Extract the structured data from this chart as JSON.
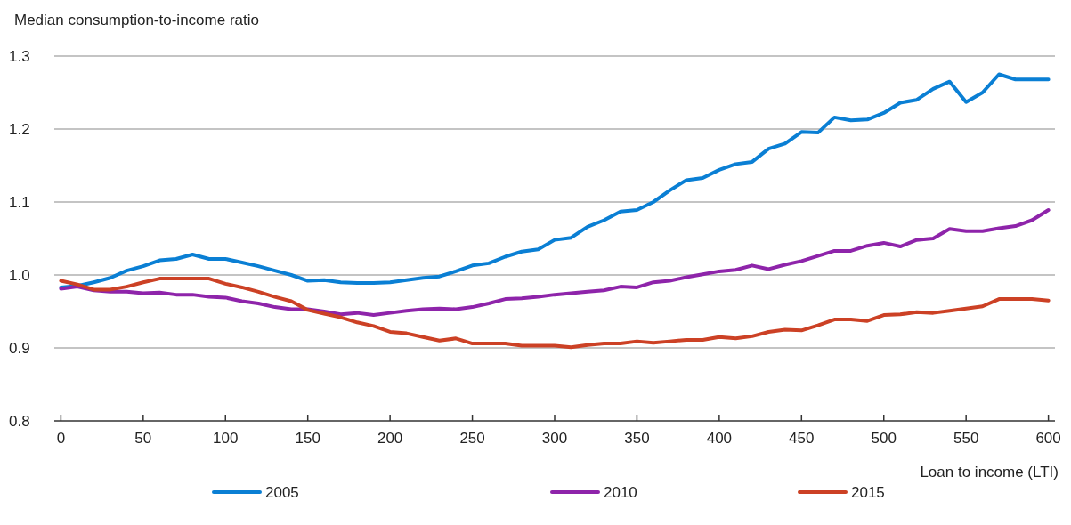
{
  "chart_data": {
    "type": "line",
    "ylabel": "Median consumption-to-income ratio",
    "xlabel": "Loan to income (LTI)",
    "x": [
      0,
      10,
      20,
      30,
      40,
      50,
      60,
      70,
      80,
      90,
      100,
      110,
      120,
      130,
      140,
      150,
      160,
      170,
      180,
      190,
      200,
      210,
      220,
      230,
      240,
      250,
      260,
      270,
      280,
      290,
      300,
      310,
      320,
      330,
      340,
      350,
      360,
      370,
      380,
      390,
      400,
      410,
      420,
      430,
      440,
      450,
      460,
      470,
      480,
      490,
      500,
      510,
      520,
      530,
      540,
      550,
      560,
      570,
      580,
      590,
      600
    ],
    "series": [
      {
        "name": "2005",
        "color": "#0a7fd4",
        "values": [
          0.983,
          0.985,
          0.99,
          0.996,
          1.006,
          1.012,
          1.02,
          1.022,
          1.028,
          1.022,
          1.022,
          1.017,
          1.012,
          1.006,
          1.0,
          0.992,
          0.993,
          0.99,
          0.989,
          0.989,
          0.99,
          0.993,
          0.996,
          0.998,
          1.005,
          1.013,
          1.016,
          1.025,
          1.032,
          1.035,
          1.048,
          1.051,
          1.066,
          1.075,
          1.087,
          1.089,
          1.1,
          1.116,
          1.13,
          1.133,
          1.144,
          1.152,
          1.155,
          1.173,
          1.18,
          1.196,
          1.195,
          1.216,
          1.212,
          1.213,
          1.222,
          1.236,
          1.24,
          1.255,
          1.265,
          1.237,
          1.25,
          1.275,
          1.268,
          1.268,
          1.268
        ]
      },
      {
        "name": "2010",
        "color": "#8e24aa",
        "values": [
          0.981,
          0.984,
          0.979,
          0.977,
          0.977,
          0.975,
          0.976,
          0.973,
          0.973,
          0.97,
          0.969,
          0.964,
          0.961,
          0.956,
          0.953,
          0.953,
          0.95,
          0.946,
          0.948,
          0.945,
          0.948,
          0.951,
          0.953,
          0.954,
          0.953,
          0.956,
          0.961,
          0.967,
          0.968,
          0.97,
          0.973,
          0.975,
          0.977,
          0.979,
          0.984,
          0.983,
          0.99,
          0.992,
          0.997,
          1.001,
          1.005,
          1.007,
          1.013,
          1.008,
          1.014,
          1.019,
          1.026,
          1.033,
          1.033,
          1.04,
          1.044,
          1.039,
          1.048,
          1.05,
          1.063,
          1.06,
          1.06,
          1.064,
          1.067,
          1.075,
          1.089
        ]
      },
      {
        "name": "2015",
        "color": "#cc4125",
        "values": [
          0.992,
          0.987,
          0.98,
          0.98,
          0.984,
          0.99,
          0.995,
          0.995,
          0.995,
          0.995,
          0.988,
          0.983,
          0.977,
          0.97,
          0.964,
          0.952,
          0.947,
          0.942,
          0.935,
          0.93,
          0.922,
          0.92,
          0.915,
          0.91,
          0.913,
          0.906,
          0.906,
          0.906,
          0.903,
          0.903,
          0.903,
          0.901,
          0.904,
          0.906,
          0.906,
          0.909,
          0.907,
          0.909,
          0.911,
          0.911,
          0.915,
          0.913,
          0.916,
          0.922,
          0.925,
          0.924,
          0.931,
          0.939,
          0.939,
          0.937,
          0.945,
          0.946,
          0.949,
          0.948,
          0.951,
          0.954,
          0.957,
          0.967,
          0.967,
          0.967,
          0.965
        ]
      }
    ],
    "xlim": [
      -4,
      604
    ],
    "xticks": [
      0,
      50,
      100,
      150,
      200,
      250,
      300,
      350,
      400,
      450,
      500,
      550,
      600
    ],
    "ylim": [
      0.8,
      1.3
    ],
    "yticks": [
      {
        "value": 0.8,
        "label": "0.8"
      },
      {
        "value": 0.9,
        "label": "0.9"
      },
      {
        "value": 1.0,
        "label": "1.0"
      },
      {
        "value": 1.1,
        "label": "1.1"
      },
      {
        "value": 1.2,
        "label": "1.2"
      },
      {
        "value": 1.3,
        "label": "1.3"
      }
    ],
    "grid": "y",
    "legend": "bottom",
    "marker": "none",
    "line_style": "solid"
  }
}
